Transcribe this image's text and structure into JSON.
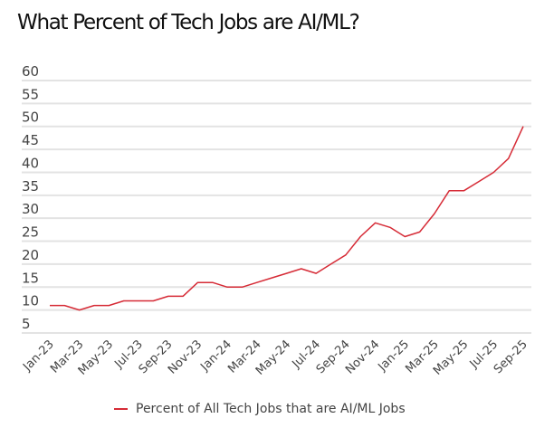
{
  "colors": {
    "series": "#d62b36",
    "grid": "#e3e3e3",
    "text": "#444444",
    "title": "#111111"
  },
  "chart_data": {
    "type": "line",
    "title": "What Percent of Tech Jobs are AI/ML?",
    "xlabel": "",
    "ylabel": "",
    "ylim": [
      5,
      60
    ],
    "yticks": [
      60,
      55,
      50,
      45,
      40,
      35,
      30,
      25,
      20,
      15,
      10,
      5
    ],
    "grid": true,
    "legend_position": "bottom-center",
    "x": [
      "Jan-23",
      "Feb-23",
      "Mar-23",
      "Apr-23",
      "May-23",
      "Jun-23",
      "Jul-23",
      "Aug-23",
      "Sep-23",
      "Oct-23",
      "Nov-23",
      "Dec-23",
      "Jan-24",
      "Feb-24",
      "Mar-24",
      "Apr-24",
      "May-24",
      "Jun-24",
      "Jul-24",
      "Aug-24",
      "Sep-24",
      "Oct-24",
      "Nov-24",
      "Dec-24",
      "Jan-25",
      "Feb-25",
      "Mar-25",
      "Apr-25",
      "May-25",
      "Jun-25",
      "Jul-25",
      "Aug-25",
      "Sep-25"
    ],
    "xtick_labels": [
      "Jan-23",
      "Mar-23",
      "May-23",
      "Jul-23",
      "Sep-23",
      "Nov-23",
      "Jan-24",
      "Mar-24",
      "May-24",
      "Jul-24",
      "Sep-24",
      "Nov-24",
      "Jan-25",
      "Mar-25",
      "May-25",
      "Jul-25",
      "Sep-25"
    ],
    "series": [
      {
        "name": "Percent of All Tech Jobs that are AI/ML Jobs",
        "values": [
          11,
          11,
          10,
          11,
          11,
          12,
          12,
          12,
          13,
          13,
          16,
          16,
          15,
          15,
          16,
          17,
          18,
          19,
          18,
          20,
          22,
          26,
          29,
          28,
          26,
          27,
          31,
          36,
          36,
          38,
          40,
          43,
          50
        ]
      }
    ]
  }
}
